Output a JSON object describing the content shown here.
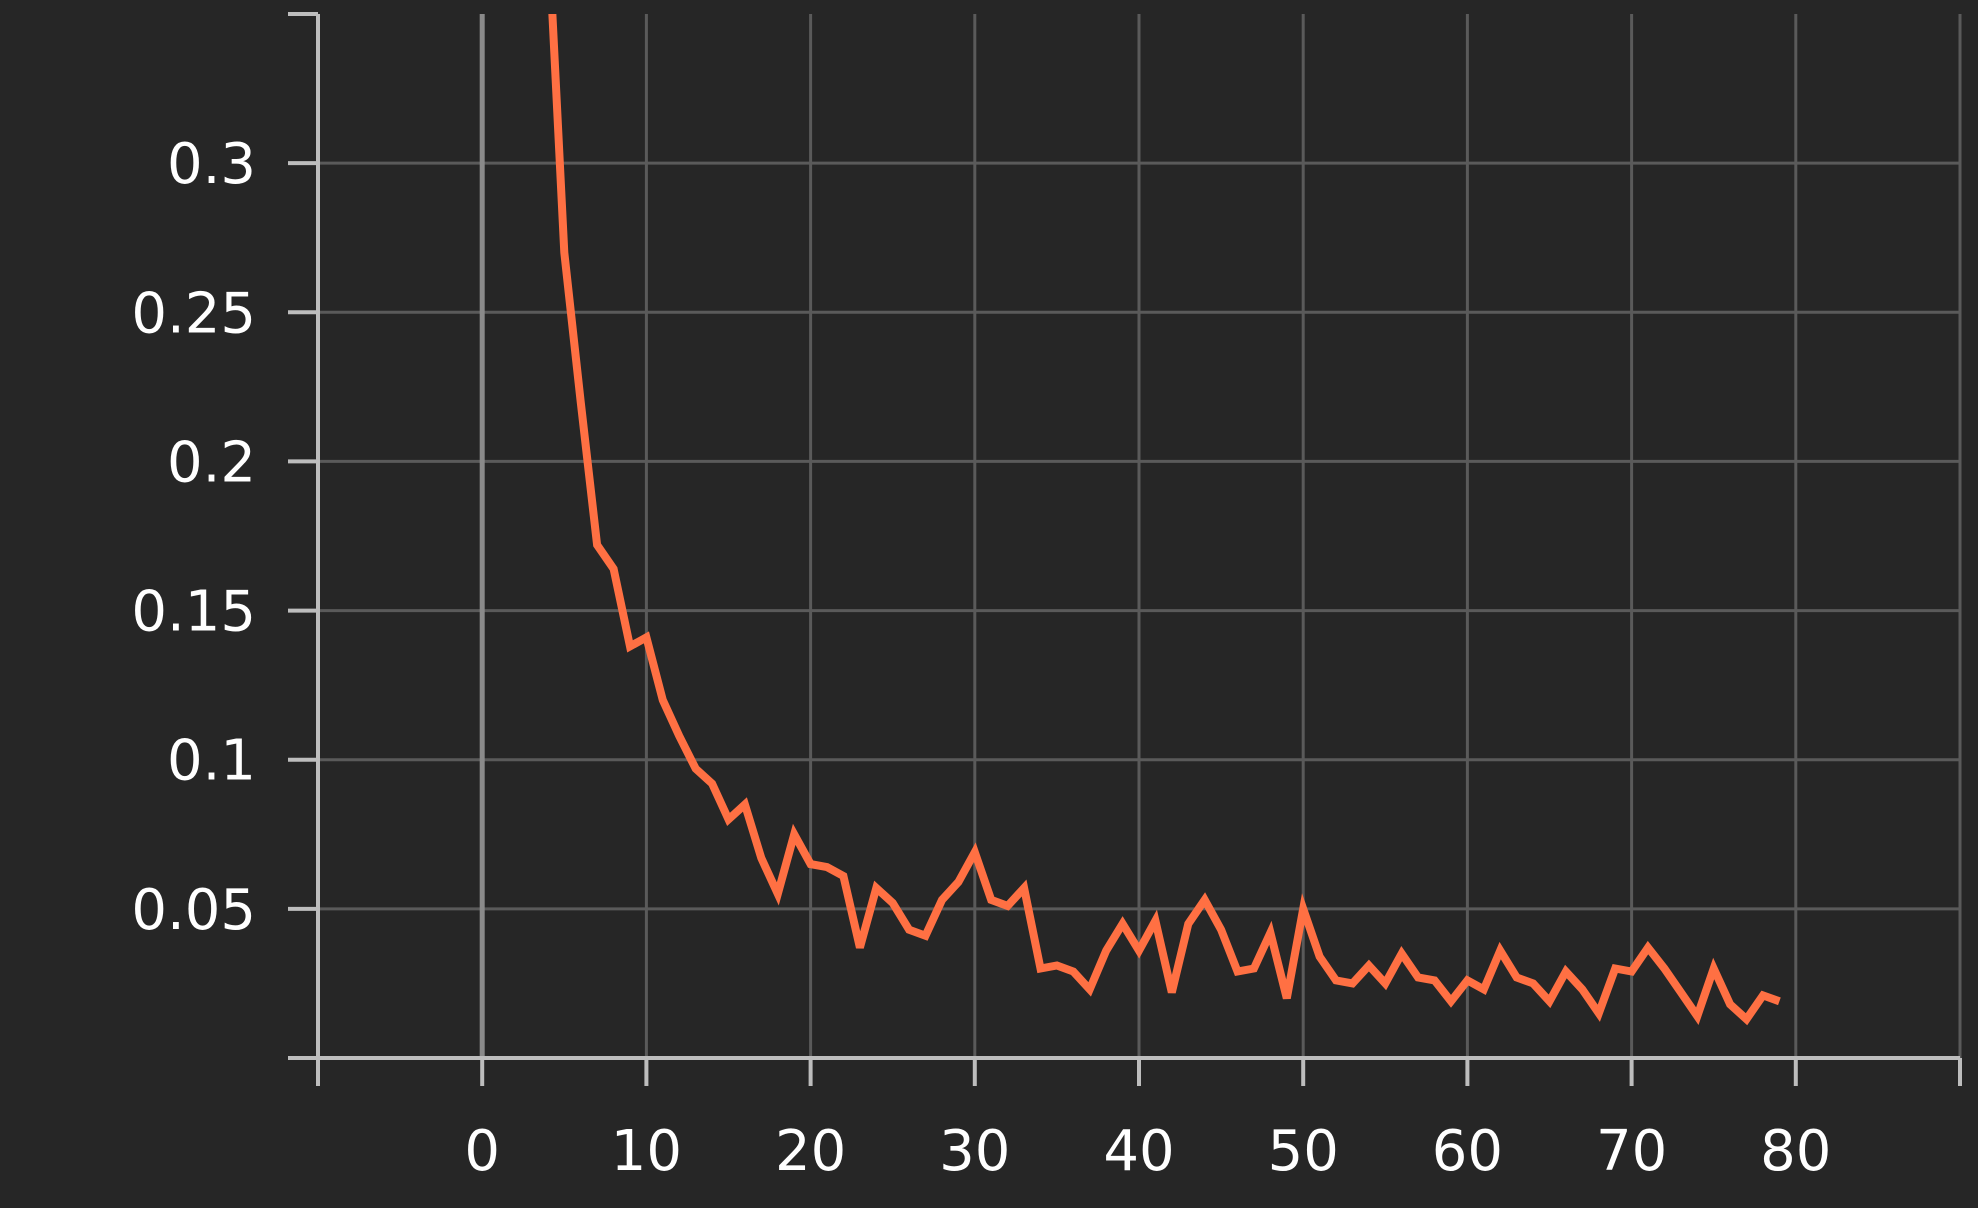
{
  "chart_data": {
    "type": "line",
    "title": "",
    "xlabel": "",
    "ylabel": "",
    "xlim": [
      -10,
      90
    ],
    "ylim": [
      0,
      0.35
    ],
    "x_ticks": [
      0,
      10,
      20,
      30,
      40,
      50,
      60,
      70,
      80
    ],
    "x_tick_labels": [
      "0",
      "10",
      "20",
      "30",
      "40",
      "50",
      "60",
      "70",
      "80"
    ],
    "y_ticks": [
      0.05,
      0.1,
      0.15,
      0.2,
      0.25,
      0.3
    ],
    "y_tick_labels": [
      "0.05",
      "0.1",
      "0.15",
      "0.2",
      "0.25",
      "0.3"
    ],
    "grid": true,
    "legend": "none",
    "series": [
      {
        "color": "#ff7043",
        "x": [
          4,
          5,
          6,
          7,
          8,
          9,
          10,
          11,
          12,
          13,
          14,
          15,
          16,
          17,
          18,
          19,
          20,
          21,
          22,
          23,
          24,
          25,
          26,
          27,
          28,
          29,
          30,
          31,
          32,
          33,
          34,
          35,
          36,
          37,
          38,
          39,
          40,
          41,
          42,
          43,
          44,
          45,
          46,
          47,
          48,
          49,
          50,
          51,
          52,
          53,
          54,
          55,
          56,
          57,
          58,
          59,
          60,
          61,
          62,
          63,
          64,
          65,
          66,
          67,
          68,
          69,
          70,
          71,
          72,
          73,
          74,
          75,
          76,
          77,
          78,
          79
        ],
        "y": [
          0.38,
          0.27,
          0.22,
          0.172,
          0.164,
          0.138,
          0.141,
          0.12,
          0.108,
          0.097,
          0.092,
          0.08,
          0.085,
          0.067,
          0.055,
          0.075,
          0.065,
          0.064,
          0.061,
          0.037,
          0.057,
          0.052,
          0.043,
          0.041,
          0.053,
          0.059,
          0.069,
          0.053,
          0.051,
          0.057,
          0.03,
          0.031,
          0.029,
          0.023,
          0.036,
          0.045,
          0.036,
          0.046,
          0.022,
          0.045,
          0.053,
          0.043,
          0.029,
          0.03,
          0.042,
          0.02,
          0.05,
          0.034,
          0.026,
          0.025,
          0.031,
          0.025,
          0.035,
          0.027,
          0.026,
          0.019,
          0.026,
          0.023,
          0.036,
          0.027,
          0.025,
          0.019,
          0.029,
          0.023,
          0.015,
          0.03,
          0.029,
          0.037,
          0.03,
          0.022,
          0.014,
          0.03,
          0.018,
          0.013,
          0.021,
          0.019
        ]
      }
    ]
  }
}
